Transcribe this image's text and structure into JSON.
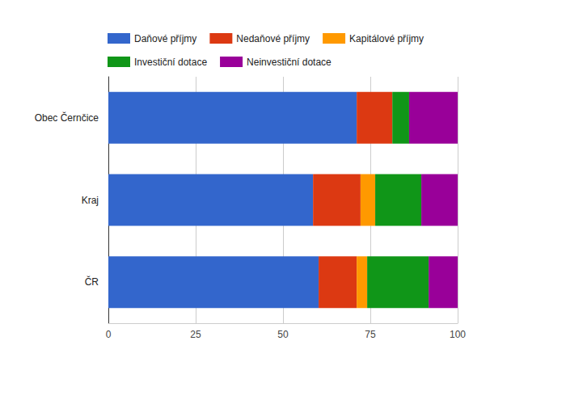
{
  "chart_data": {
    "type": "bar",
    "orientation": "horizontal",
    "stacked": true,
    "categories": [
      "Obec Černčice",
      "Kraj",
      "ČR"
    ],
    "series": [
      {
        "name": "Daňové příjmy",
        "color": "#3366cc",
        "values": [
          71.1,
          58.6,
          60.2
        ]
      },
      {
        "name": "Nedaňové příjmy",
        "color": "#dc3912",
        "values": [
          10.2,
          13.6,
          10.9
        ]
      },
      {
        "name": "Kapitálové příjmy",
        "color": "#ff9900",
        "values": [
          0,
          4.2,
          3.0
        ]
      },
      {
        "name": "Investiční dotace",
        "color": "#109618",
        "values": [
          4.8,
          13.2,
          17.6
        ]
      },
      {
        "name": "Neinvestiční dotace",
        "color": "#990099",
        "values": [
          13.9,
          10.4,
          8.3
        ]
      }
    ],
    "xlim": [
      0,
      100
    ],
    "xticks": [
      0,
      25,
      50,
      75,
      100
    ],
    "grid": true,
    "legend": "top"
  }
}
